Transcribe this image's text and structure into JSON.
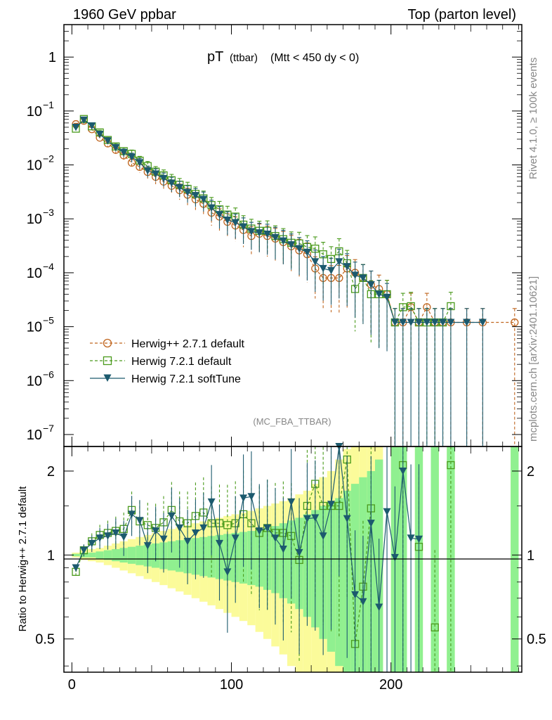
{
  "header": {
    "left": "1960 GeV ppbar",
    "right": "Top (parton level)"
  },
  "plot_title": {
    "main": "pT",
    "sub1": "(ttbar)",
    "sub2": "(Mtt < 450 dy < 0)"
  },
  "analysis_tag": "(MC_FBA_TTBAR)",
  "side_text": {
    "rivet": "Rivet 4.1.0, ≥ 100k events",
    "mcplots": "mcplots.cern.ch [arXiv:2401.10621]"
  },
  "colors": {
    "herwigpp": "#c0661f",
    "herwig721": "#4a9a1c",
    "softtune": "#1c5a6e",
    "band_green": "#90f090",
    "band_yellow": "#fbfb9a"
  },
  "chart_data": [
    {
      "type": "line",
      "yscale": "log",
      "title": "pT (ttbar) (Mtt < 450 dy < 0)",
      "xlabel": "",
      "ylabel": "",
      "xlim": [
        -5,
        282
      ],
      "ylim": [
        6e-08,
        4
      ],
      "y_ticks": [
        {
          "v": 1,
          "base": "1",
          "exp": ""
        },
        {
          "v": 0.1,
          "base": "10",
          "exp": "−1"
        },
        {
          "v": 0.01,
          "base": "10",
          "exp": "−2"
        },
        {
          "v": 0.001,
          "base": "10",
          "exp": "−3"
        },
        {
          "v": 0.0001,
          "base": "10",
          "exp": "−4"
        },
        {
          "v": 1e-05,
          "base": "10",
          "exp": "−5"
        },
        {
          "v": 1e-06,
          "base": "10",
          "exp": "−6"
        },
        {
          "v": 1e-07,
          "base": "10",
          "exp": "−7"
        }
      ],
      "legend": {
        "position": "lower-left",
        "entries": [
          "Herwig++ 2.7.1 default",
          "Herwig 7.2.1 default",
          "Herwig 7.2.1 softTune"
        ]
      },
      "x": [
        2.5,
        7.5,
        12.5,
        17.5,
        22.5,
        27.5,
        32.5,
        37.5,
        42.5,
        47.5,
        52.5,
        57.5,
        62.5,
        67.5,
        72.5,
        77.5,
        82.5,
        87.5,
        92.5,
        97.5,
        102.5,
        107.5,
        112.5,
        117.5,
        122.5,
        127.5,
        132.5,
        137.5,
        142.5,
        147.5,
        152.5,
        157.5,
        162.5,
        167.5,
        172.5,
        177.5,
        182.5,
        187.5,
        192.5,
        197.5,
        202.5,
        207.5,
        212.5,
        217.5,
        222.5,
        227.5,
        232.5,
        237.5,
        247.5,
        257.5,
        277.5
      ],
      "series": [
        {
          "name": "Herwig++ 2.7.1 default",
          "marker": "open-circle",
          "values": [
            0.057,
            0.066,
            0.046,
            0.032,
            0.025,
            0.019,
            0.015,
            0.011,
            0.0092,
            0.0074,
            0.006,
            0.0049,
            0.0041,
            0.0034,
            0.0028,
            0.0023,
            0.0019,
            0.0013,
            0.0011,
            0.00088,
            0.00075,
            0.00062,
            0.00048,
            0.00053,
            0.00048,
            0.00043,
            0.00037,
            0.00031,
            0.00026,
            0.00022,
            0.00012,
            8e-05,
            8e-05,
            8e-05,
            0.00012,
            0.0001,
            8e-05,
            6e-05,
            5e-05,
            4e-05,
            1.2e-05,
            1.2e-05,
            2.3e-05,
            1.2e-05,
            2.3e-05,
            1.2e-05,
            1.2e-05,
            1.2e-05,
            1.2e-05,
            1.2e-05,
            1.2e-05
          ]
        },
        {
          "name": "Herwig 7.2.1 default",
          "marker": "open-square",
          "values": [
            0.047,
            0.071,
            0.052,
            0.04,
            0.029,
            0.022,
            0.018,
            0.016,
            0.012,
            0.0095,
            0.0075,
            0.0064,
            0.0052,
            0.0043,
            0.0036,
            0.0029,
            0.0024,
            0.0018,
            0.0015,
            0.0012,
            0.0011,
            0.00078,
            0.00066,
            0.0006,
            0.0006,
            0.00048,
            0.00042,
            0.00036,
            0.00035,
            0.0003,
            0.00028,
            0.00022,
            0.00018,
            0.00025,
            0.00015,
            5e-05,
            8e-05,
            4e-05,
            4e-05,
            4e-05,
            1.2e-05,
            2.3e-05,
            2.4e-05,
            1.2e-05,
            1.2e-05,
            1.2e-05,
            1.2e-05,
            2.4e-05,
            null,
            null,
            null
          ]
        },
        {
          "name": "Herwig 7.2.1 softTune",
          "marker": "filled-triangle-down",
          "values": [
            0.05,
            0.068,
            0.053,
            0.037,
            0.028,
            0.021,
            0.017,
            0.014,
            0.011,
            0.0078,
            0.0068,
            0.0056,
            0.0046,
            0.0038,
            0.0031,
            0.0027,
            0.0023,
            0.0016,
            0.0012,
            0.00095,
            0.00085,
            0.00071,
            0.00058,
            0.00055,
            0.00052,
            0.00045,
            0.00039,
            0.00033,
            0.00028,
            0.00024,
            0.00016,
            0.00012,
            0.00011,
            0.00016,
            0.00013,
            9e-05,
            8e-05,
            6e-05,
            4e-05,
            3.5e-05,
            1.2e-05,
            1.2e-05,
            1.2e-05,
            1.2e-05,
            1.2e-05,
            1.2e-05,
            1.2e-05,
            1.2e-05,
            1.2e-05,
            1.2e-05,
            null
          ]
        }
      ]
    },
    {
      "type": "line",
      "ylabel": "Ratio to Herwig++ 2.7.1 default",
      "xlim": [
        -5,
        282
      ],
      "ylim": [
        0.38,
        2.45
      ],
      "y_ticks": [
        {
          "v": 0.5,
          "label": "0.5"
        },
        {
          "v": 1,
          "label": "1"
        },
        {
          "v": 2,
          "label": "2"
        }
      ],
      "x_ticks": [
        {
          "v": 0,
          "label": "0"
        },
        {
          "v": 100,
          "label": "100"
        },
        {
          "v": 200,
          "label": "200"
        }
      ],
      "reference_line": 1,
      "x": [
        2.5,
        7.5,
        12.5,
        17.5,
        22.5,
        27.5,
        32.5,
        37.5,
        42.5,
        47.5,
        52.5,
        57.5,
        62.5,
        67.5,
        72.5,
        77.5,
        82.5,
        87.5,
        92.5,
        97.5,
        102.5,
        107.5,
        112.5,
        117.5,
        122.5,
        127.5,
        132.5,
        137.5,
        142.5,
        147.5,
        152.5,
        157.5,
        162.5,
        167.5,
        172.5,
        177.5,
        182.5,
        187.5,
        192.5,
        197.5,
        202.5,
        207.5,
        212.5,
        217.5,
        222.5,
        227.5,
        232.5,
        237.5
      ],
      "series": [
        {
          "name": "Herwig 7.2.1 default",
          "values": [
            0.87,
            1.04,
            1.12,
            1.18,
            1.2,
            1.22,
            1.24,
            1.45,
            1.32,
            1.28,
            1.25,
            1.31,
            1.45,
            1.32,
            1.3,
            1.38,
            1.42,
            1.3,
            1.3,
            1.28,
            1.3,
            1.4,
            1.3,
            1.2,
            1.25,
            1.2,
            1.2,
            1.17,
            0.96,
            1.5,
            1.8,
            1.5,
            1.5,
            1.5,
            2.2,
            0.48,
            0.77,
            1.47,
            null,
            null,
            null,
            2.1,
            null,
            1.07,
            null,
            0.55,
            null,
            2.1
          ]
        },
        {
          "name": "Herwig 7.2.1 softTune",
          "values": [
            0.9,
            1.04,
            1.1,
            1.15,
            1.17,
            1.2,
            1.16,
            1.4,
            1.33,
            1.08,
            1.22,
            1.14,
            1.38,
            1.25,
            1.12,
            1.2,
            1.25,
            1.55,
            1.1,
            0.87,
            1.15,
            1.6,
            1.62,
            1.22,
            1.25,
            1.15,
            1.05,
            1.55,
            1.02,
            1.35,
            1.36,
            1.17,
            1.52,
            2.5,
            1.35,
            0.72,
            0.68,
            1.3,
            0.65,
            1.43,
            0.98,
            2.0,
            1.15,
            1.14,
            null,
            null,
            null,
            null
          ]
        }
      ],
      "uncertainty_bands": {
        "x_edges": [
          0,
          5,
          10,
          15,
          20,
          25,
          30,
          35,
          40,
          45,
          50,
          55,
          60,
          65,
          70,
          75,
          80,
          85,
          90,
          95,
          100,
          105,
          110,
          115,
          120,
          125,
          130,
          135,
          140,
          145,
          150,
          155,
          160,
          165,
          170,
          175,
          180,
          185,
          190,
          195,
          200,
          205,
          210,
          215,
          220,
          225,
          230,
          235,
          240,
          245,
          255,
          260,
          275,
          280
        ],
        "green_half_width": [
          0.01,
          0.02,
          0.02,
          0.03,
          0.04,
          0.05,
          0.06,
          0.07,
          0.08,
          0.09,
          0.1,
          0.11,
          0.12,
          0.13,
          0.14,
          0.15,
          0.16,
          0.17,
          0.18,
          0.19,
          0.2,
          0.21,
          0.22,
          0.23,
          0.25,
          0.27,
          0.3,
          0.33,
          0.36,
          0.4,
          0.45,
          0.5,
          0.55,
          0.6,
          0.7,
          0.8,
          0.9,
          1.0,
          1.2,
          1.5,
          1.8,
          2.0,
          2.0,
          2.0,
          2.0,
          2.0,
          2.0,
          2.0,
          2.0,
          2.0,
          2.0,
          2.0,
          2.0
        ],
        "yellow_half_width": [
          0.02,
          0.04,
          0.05,
          0.06,
          0.08,
          0.1,
          0.12,
          0.14,
          0.16,
          0.18,
          0.2,
          0.22,
          0.24,
          0.26,
          0.28,
          0.3,
          0.32,
          0.34,
          0.36,
          0.38,
          0.4,
          0.42,
          0.44,
          0.47,
          0.5,
          0.53,
          0.56,
          0.6,
          0.65,
          0.7,
          0.8,
          0.9,
          1.0,
          1.2,
          1.4,
          1.6,
          1.8,
          2.0,
          2.0,
          2.0,
          2.0,
          2.0,
          2.0,
          2.0,
          2.0,
          2.0,
          2.0,
          2.0,
          2.0,
          2.0,
          2.0,
          2.0,
          2.0
        ],
        "bin_present": [
          1,
          1,
          1,
          1,
          1,
          1,
          1,
          1,
          1,
          1,
          1,
          1,
          1,
          1,
          1,
          1,
          1,
          1,
          1,
          1,
          1,
          1,
          1,
          1,
          1,
          1,
          1,
          1,
          1,
          1,
          1,
          1,
          1,
          1,
          1,
          1,
          1,
          1,
          1,
          0,
          1,
          1,
          0,
          1,
          0,
          1,
          0,
          1,
          0,
          0,
          0,
          0,
          1
        ]
      }
    }
  ]
}
